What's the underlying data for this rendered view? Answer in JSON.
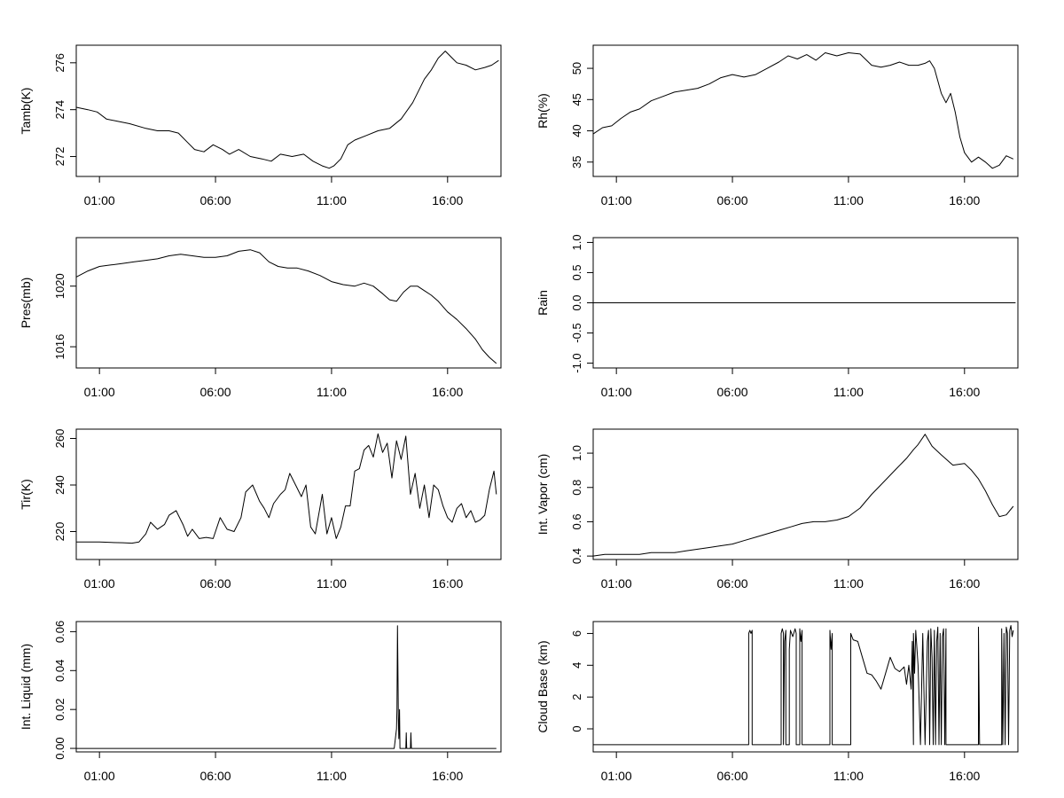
{
  "chart_data": [
    {
      "type": "line",
      "ylabel": "Tamb(K)",
      "xlabel": "",
      "x_ticks": [
        "01:00",
        "06:00",
        "11:00",
        "16:00"
      ],
      "y_ticks": [
        "272",
        "274",
        "276"
      ],
      "xlim": [
        0.0,
        18.3
      ],
      "ylim": [
        271.15,
        276.75
      ],
      "series": [
        {
          "x": [
            0,
            0.5,
            0.9,
            1.3,
            1.8,
            2.3,
            3.0,
            3.5,
            4.0,
            4.4,
            4.8,
            5.1,
            5.5,
            5.9,
            6.3,
            6.6,
            7.0,
            7.5,
            8.0,
            8.4,
            8.8,
            9.3,
            9.8,
            10.2,
            10.6,
            10.9,
            11.1,
            11.4,
            11.7,
            12.0,
            12.5,
            13.0,
            13.5,
            14.0,
            14.5,
            15.0,
            15.3,
            15.6,
            15.9,
            16.1,
            16.4,
            16.8,
            17.2,
            17.6,
            17.9,
            18.2
          ],
          "y": [
            274.1,
            274.0,
            273.9,
            273.6,
            273.5,
            273.4,
            273.2,
            273.1,
            273.1,
            273.0,
            272.6,
            272.3,
            272.2,
            272.5,
            272.3,
            272.1,
            272.3,
            272.0,
            271.9,
            271.8,
            272.1,
            272.0,
            272.1,
            271.8,
            271.6,
            271.5,
            271.6,
            271.9,
            272.5,
            272.7,
            272.9,
            273.1,
            273.2,
            273.6,
            274.3,
            275.3,
            275.7,
            276.2,
            276.5,
            276.3,
            276.0,
            275.9,
            275.7,
            275.8,
            275.9,
            276.1
          ]
        }
      ]
    },
    {
      "type": "line",
      "ylabel": "Rh(%)",
      "xlabel": "",
      "x_ticks": [
        "01:00",
        "06:00",
        "11:00",
        "16:00"
      ],
      "y_ticks": [
        "35",
        "40",
        "45",
        "50"
      ],
      "xlim": [
        0.0,
        18.3
      ],
      "ylim": [
        32.7,
        53.7
      ],
      "series": [
        {
          "x": [
            0,
            0.4,
            0.8,
            1.2,
            1.6,
            2.0,
            2.5,
            3.0,
            3.5,
            4.0,
            4.5,
            5.0,
            5.5,
            6.0,
            6.5,
            7.0,
            7.5,
            8.0,
            8.4,
            8.8,
            9.2,
            9.6,
            10.0,
            10.5,
            11.0,
            11.5,
            12.0,
            12.4,
            12.8,
            13.2,
            13.6,
            14.0,
            14.3,
            14.5,
            14.7,
            15.0,
            15.2,
            15.4,
            15.6,
            15.8,
            16.0,
            16.3,
            16.6,
            16.9,
            17.2,
            17.5,
            17.8,
            18.1
          ],
          "y": [
            39.5,
            40.5,
            40.8,
            42.0,
            43.0,
            43.5,
            44.8,
            45.5,
            46.2,
            46.5,
            46.8,
            47.5,
            48.5,
            49.0,
            48.6,
            49.0,
            50.0,
            51.0,
            52.0,
            51.5,
            52.2,
            51.3,
            52.5,
            52.0,
            52.5,
            52.3,
            50.5,
            50.2,
            50.5,
            51.0,
            50.5,
            50.5,
            50.8,
            51.2,
            50.0,
            46.0,
            44.5,
            46.0,
            43.0,
            39.0,
            36.5,
            35.0,
            35.8,
            35.0,
            34.0,
            34.5,
            36.0,
            35.5
          ]
        }
      ]
    },
    {
      "type": "line",
      "ylabel": "Pres(mb)",
      "xlabel": "",
      "x_ticks": [
        "01:00",
        "06:00",
        "11:00",
        "16:00"
      ],
      "y_ticks": [
        "1016",
        "1020"
      ],
      "xlim": [
        0.0,
        18.3
      ],
      "ylim": [
        1014.6,
        1023.2
      ],
      "series": [
        {
          "x": [
            0,
            0.5,
            1.0,
            1.5,
            2.0,
            2.5,
            3.0,
            3.5,
            4.0,
            4.5,
            5.0,
            5.5,
            6.0,
            6.5,
            7.0,
            7.5,
            7.9,
            8.3,
            8.7,
            9.1,
            9.5,
            10.0,
            10.5,
            11.0,
            11.5,
            12.0,
            12.4,
            12.8,
            13.2,
            13.5,
            13.8,
            14.1,
            14.4,
            14.7,
            15.0,
            15.3,
            15.6,
            16.0,
            16.4,
            16.8,
            17.2,
            17.5,
            17.8,
            18.1
          ],
          "y": [
            1020.6,
            1021.0,
            1021.3,
            1021.4,
            1021.5,
            1021.6,
            1021.7,
            1021.8,
            1022.0,
            1022.1,
            1022.0,
            1021.9,
            1021.9,
            1022.0,
            1022.3,
            1022.4,
            1022.2,
            1021.6,
            1021.3,
            1021.2,
            1021.2,
            1021.0,
            1020.7,
            1020.3,
            1020.1,
            1020.0,
            1020.2,
            1020.0,
            1019.5,
            1019.1,
            1019.0,
            1019.6,
            1020.0,
            1020.0,
            1019.7,
            1019.4,
            1019.0,
            1018.3,
            1017.8,
            1017.2,
            1016.5,
            1015.8,
            1015.3,
            1014.9
          ]
        }
      ]
    },
    {
      "type": "line",
      "ylabel": "Rain",
      "xlabel": "",
      "x_ticks": [
        "01:00",
        "06:00",
        "11:00",
        "16:00"
      ],
      "y_ticks": [
        "-1.0",
        "-0.5",
        "0.0",
        "0.5",
        "1.0"
      ],
      "xlim": [
        0.0,
        18.3
      ],
      "ylim": [
        -1.08,
        1.08
      ],
      "series": [
        {
          "x": [
            0,
            18.2
          ],
          "y": [
            0.0,
            0.0
          ]
        }
      ]
    },
    {
      "type": "line",
      "ylabel": "Tir(K)",
      "xlabel": "",
      "x_ticks": [
        "01:00",
        "06:00",
        "11:00",
        "16:00"
      ],
      "y_ticks": [
        "220",
        "240",
        "260"
      ],
      "xlim": [
        0.0,
        18.3
      ],
      "ylim": [
        208,
        264
      ],
      "series": [
        {
          "x": [
            0,
            0.5,
            1.0,
            1.5,
            2.0,
            2.4,
            2.7,
            3.0,
            3.2,
            3.5,
            3.8,
            4.0,
            4.3,
            4.6,
            4.8,
            5.0,
            5.3,
            5.6,
            5.9,
            6.2,
            6.5,
            6.8,
            7.1,
            7.3,
            7.6,
            7.9,
            8.1,
            8.3,
            8.5,
            8.8,
            9.0,
            9.2,
            9.5,
            9.7,
            9.9,
            10.1,
            10.3,
            10.6,
            10.8,
            11.0,
            11.2,
            11.4,
            11.6,
            11.8,
            12.0,
            12.2,
            12.4,
            12.6,
            12.8,
            13.0,
            13.2,
            13.4,
            13.6,
            13.8,
            14.0,
            14.2,
            14.4,
            14.6,
            14.8,
            15.0,
            15.2,
            15.4,
            15.6,
            15.8,
            16.0,
            16.2,
            16.4,
            16.6,
            16.8,
            17.0,
            17.2,
            17.4,
            17.6,
            17.8,
            18.0,
            18.1
          ],
          "y": [
            215.5,
            215.5,
            215.5,
            215.3,
            215.2,
            215.0,
            215.5,
            219.0,
            224.0,
            221.0,
            223.0,
            227.0,
            229.0,
            223.0,
            218.0,
            221.0,
            217.0,
            217.5,
            217.0,
            226.0,
            221.0,
            220.0,
            226.0,
            237.0,
            240.0,
            233.0,
            230.0,
            226.0,
            232.0,
            236.0,
            238.0,
            245.0,
            239.0,
            235.0,
            240.0,
            222.0,
            219.0,
            236.0,
            219.0,
            226.0,
            217.0,
            222.0,
            231.0,
            231.0,
            246.0,
            247.0,
            255.0,
            257.0,
            252.0,
            262.0,
            254.0,
            258.0,
            243.0,
            259.0,
            251.0,
            261.0,
            236.0,
            245.0,
            230.0,
            240.0,
            226.0,
            240.0,
            238.0,
            231.0,
            226.0,
            224.0,
            230.0,
            232.0,
            226.0,
            229.0,
            224.0,
            225.0,
            227.0,
            238.0,
            246.0,
            236.0
          ]
        }
      ]
    },
    {
      "type": "line",
      "ylabel": "Int. Vapor (cm)",
      "xlabel": "",
      "x_ticks": [
        "01:00",
        "06:00",
        "11:00",
        "16:00"
      ],
      "y_ticks": [
        "0.4",
        "0.6",
        "0.8",
        "1.0"
      ],
      "xlim": [
        0.0,
        18.3
      ],
      "ylim": [
        0.38,
        1.14
      ],
      "series": [
        {
          "x": [
            0,
            0.5,
            1.0,
            1.5,
            2.0,
            2.5,
            3.0,
            3.5,
            4.0,
            4.5,
            5.0,
            5.5,
            6.0,
            6.5,
            7.0,
            7.5,
            8.0,
            8.5,
            9.0,
            9.5,
            10.0,
            10.5,
            11.0,
            11.5,
            12.0,
            12.5,
            13.0,
            13.5,
            13.8,
            14.0,
            14.3,
            14.6,
            15.0,
            15.5,
            16.0,
            16.3,
            16.6,
            16.9,
            17.2,
            17.5,
            17.8,
            18.1
          ],
          "y": [
            0.4,
            0.41,
            0.41,
            0.41,
            0.41,
            0.42,
            0.42,
            0.42,
            0.43,
            0.44,
            0.45,
            0.46,
            0.47,
            0.49,
            0.51,
            0.53,
            0.55,
            0.57,
            0.59,
            0.6,
            0.6,
            0.61,
            0.63,
            0.68,
            0.76,
            0.83,
            0.9,
            0.97,
            1.02,
            1.05,
            1.11,
            1.04,
            0.99,
            0.93,
            0.94,
            0.9,
            0.85,
            0.78,
            0.7,
            0.63,
            0.64,
            0.69
          ]
        }
      ]
    },
    {
      "type": "line",
      "ylabel": "Int. Liquid (mm)",
      "xlabel": "",
      "x_ticks": [
        "01:00",
        "06:00",
        "11:00",
        "16:00"
      ],
      "y_ticks": [
        "0.00",
        "0.02",
        "0.04",
        "0.06"
      ],
      "xlim": [
        0.0,
        18.3
      ],
      "ylim": [
        -0.0018,
        0.0652
      ],
      "series": [
        {
          "x": [
            0,
            13.7,
            13.75,
            13.8,
            13.82,
            13.84,
            13.86,
            13.88,
            13.9,
            13.93,
            13.95,
            14.0,
            14.2,
            14.22,
            14.24,
            14.3,
            14.4,
            14.42,
            14.44,
            14.5,
            18.1
          ],
          "y": [
            0.0,
            0.0,
            0.005,
            0.01,
            0.02,
            0.063,
            0.04,
            0.015,
            0.005,
            0.02,
            0.0,
            0.0,
            0.0,
            0.008,
            0.0,
            0.0,
            0.0,
            0.008,
            0.0,
            0.0,
            0.0
          ]
        }
      ]
    },
    {
      "type": "line",
      "ylabel": "Cloud Base (km)",
      "xlabel": "",
      "x_ticks": [
        "01:00",
        "06:00",
        "11:00",
        "16:00"
      ],
      "y_ticks": [
        "0",
        "2",
        "4",
        "6"
      ],
      "xlim": [
        0.0,
        18.3
      ],
      "ylim": [
        -1.45,
        6.75
      ],
      "series": [
        {
          "x": [
            0,
            6.7,
            6.7,
            6.75,
            6.8,
            6.85,
            6.85,
            8.1,
            8.1,
            8.15,
            8.2,
            8.2,
            8.25,
            8.3,
            8.3,
            8.45,
            8.45,
            8.5,
            8.6,
            8.7,
            8.75,
            8.75,
            8.9,
            8.9,
            8.95,
            9.0,
            9.0,
            10.2,
            10.2,
            10.25,
            10.3,
            10.3,
            11.1,
            11.1,
            11.2,
            11.4,
            11.6,
            11.8,
            12.0,
            12.2,
            12.4,
            12.6,
            12.8,
            13.0,
            13.2,
            13.4,
            13.5,
            13.6,
            13.7,
            13.75,
            13.8,
            13.8,
            13.85,
            13.9,
            14.0,
            14.1,
            14.2,
            14.3,
            14.4,
            14.45,
            14.5,
            14.55,
            14.6,
            14.65,
            14.7,
            14.75,
            14.8,
            14.85,
            14.9,
            14.95,
            15.0,
            15.05,
            15.1,
            15.15,
            15.2,
            15.2,
            16.6,
            16.6,
            16.65,
            16.65,
            17.6,
            17.6,
            17.65,
            17.7,
            17.75,
            17.8,
            17.85,
            17.9,
            17.95,
            18.0,
            18.05,
            18.1
          ],
          "y": [
            -1.0,
            -1.0,
            6.0,
            6.2,
            6.0,
            6.2,
            -1.0,
            -1.0,
            6.0,
            6.3,
            6.0,
            -1.0,
            5.5,
            6.2,
            -1.0,
            -1.0,
            5.0,
            6.2,
            5.8,
            6.3,
            6.0,
            -1.0,
            -1.0,
            6.3,
            5.5,
            6.2,
            -1.0,
            -1.0,
            6.2,
            5.0,
            6.0,
            -1.0,
            -1.0,
            6.0,
            5.6,
            5.5,
            4.5,
            3.5,
            3.4,
            3.0,
            2.5,
            3.5,
            4.5,
            3.8,
            3.6,
            3.9,
            2.8,
            4.0,
            2.5,
            5.5,
            -1.0,
            6.0,
            3.5,
            6.2,
            4.0,
            -1.0,
            6.0,
            -1.0,
            5.5,
            6.2,
            -1.0,
            6.3,
            4.5,
            -1.0,
            6.2,
            -1.0,
            5.5,
            6.4,
            -1.0,
            6.0,
            -1.0,
            5.8,
            6.3,
            -1.0,
            6.3,
            -1.0,
            -1.0,
            6.4,
            -1.0,
            -1.0,
            -1.0,
            6.3,
            -1.0,
            6.0,
            -1.0,
            6.4,
            6.0,
            -1.0,
            6.2,
            6.5,
            5.8,
            6.2
          ]
        }
      ]
    }
  ]
}
